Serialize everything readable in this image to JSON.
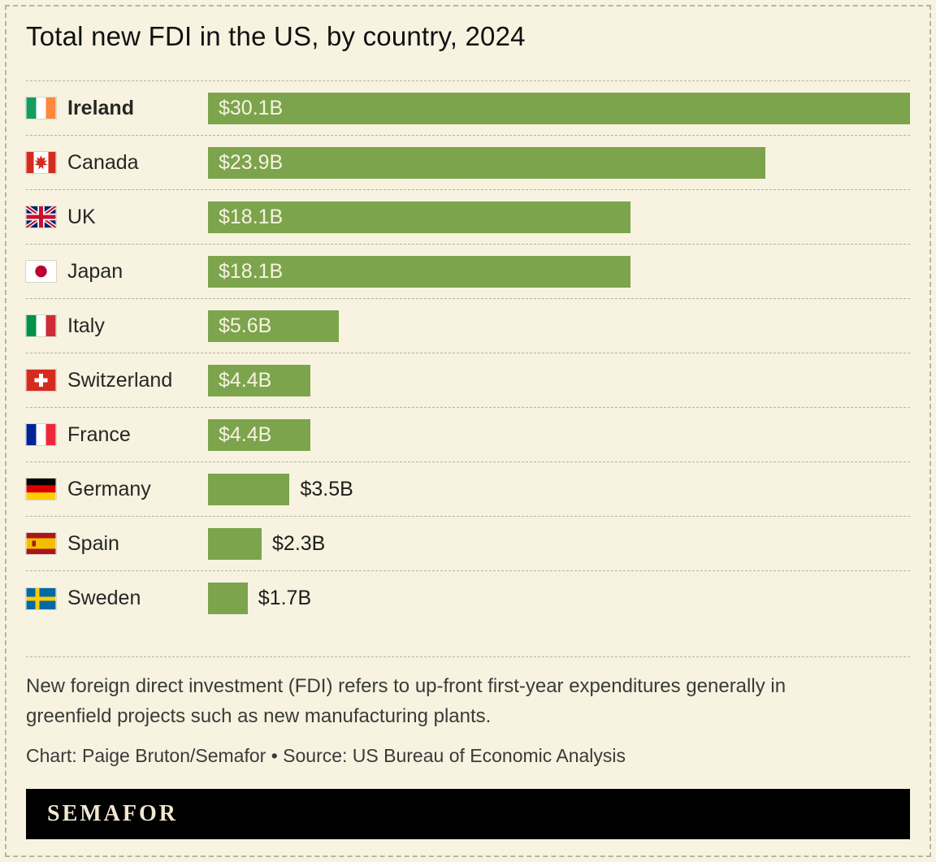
{
  "header": {
    "title": "Total new FDI in the US, by country, 2024"
  },
  "chart_data": {
    "type": "bar",
    "orientation": "horizontal",
    "title": "Total new FDI in the US, by country, 2024",
    "value_unit": "USD billions",
    "xlim": [
      0,
      30.1
    ],
    "grid": false,
    "legend": false,
    "categories": [
      "Ireland",
      "Canada",
      "UK",
      "Japan",
      "Italy",
      "Switzerland",
      "France",
      "Germany",
      "Spain",
      "Sweden"
    ],
    "values": [
      30.1,
      23.9,
      18.1,
      18.1,
      5.6,
      4.4,
      4.4,
      3.5,
      2.3,
      1.7
    ],
    "value_labels": [
      "$30.1B",
      "$23.9B",
      "$18.1B",
      "$18.1B",
      "$5.6B",
      "$4.4B",
      "$4.4B",
      "$3.5B",
      "$2.3B",
      "$1.7B"
    ],
    "bar_color": "#7ca44c",
    "rows": [
      {
        "country": "Ireland",
        "flag": "ireland",
        "value": 30.1,
        "value_label": "$30.1B",
        "bold": true
      },
      {
        "country": "Canada",
        "flag": "canada",
        "value": 23.9,
        "value_label": "$23.9B",
        "bold": false
      },
      {
        "country": "UK",
        "flag": "uk",
        "value": 18.1,
        "value_label": "$18.1B",
        "bold": false
      },
      {
        "country": "Japan",
        "flag": "japan",
        "value": 18.1,
        "value_label": "$18.1B",
        "bold": false
      },
      {
        "country": "Italy",
        "flag": "italy",
        "value": 5.6,
        "value_label": "$5.6B",
        "bold": false
      },
      {
        "country": "Switzerland",
        "flag": "switzerland",
        "value": 4.4,
        "value_label": "$4.4B",
        "bold": false
      },
      {
        "country": "France",
        "flag": "france",
        "value": 4.4,
        "value_label": "$4.4B",
        "bold": false
      },
      {
        "country": "Germany",
        "flag": "germany",
        "value": 3.5,
        "value_label": "$3.5B",
        "bold": false
      },
      {
        "country": "Spain",
        "flag": "spain",
        "value": 2.3,
        "value_label": "$2.3B",
        "bold": false
      },
      {
        "country": "Sweden",
        "flag": "sweden",
        "value": 1.7,
        "value_label": "$1.7B",
        "bold": false
      }
    ]
  },
  "footer": {
    "note": "New foreign direct investment (FDI) refers to up-front first-year expenditures generally in greenfield projects such as new manufacturing plants.",
    "credit": "Chart: Paige Bruton/Semafor • Source: US Bureau of Economic Analysis"
  },
  "brand": {
    "logo_text": "SEMAFOR"
  },
  "colors": {
    "background": "#f7f3e0",
    "bar": "#7ca44c",
    "value_text_inside": "#f7f3e0",
    "text": "#1c1c1c",
    "rule": "#b9b59c",
    "band": "#000000",
    "logo_text": "#f0e8cf"
  }
}
